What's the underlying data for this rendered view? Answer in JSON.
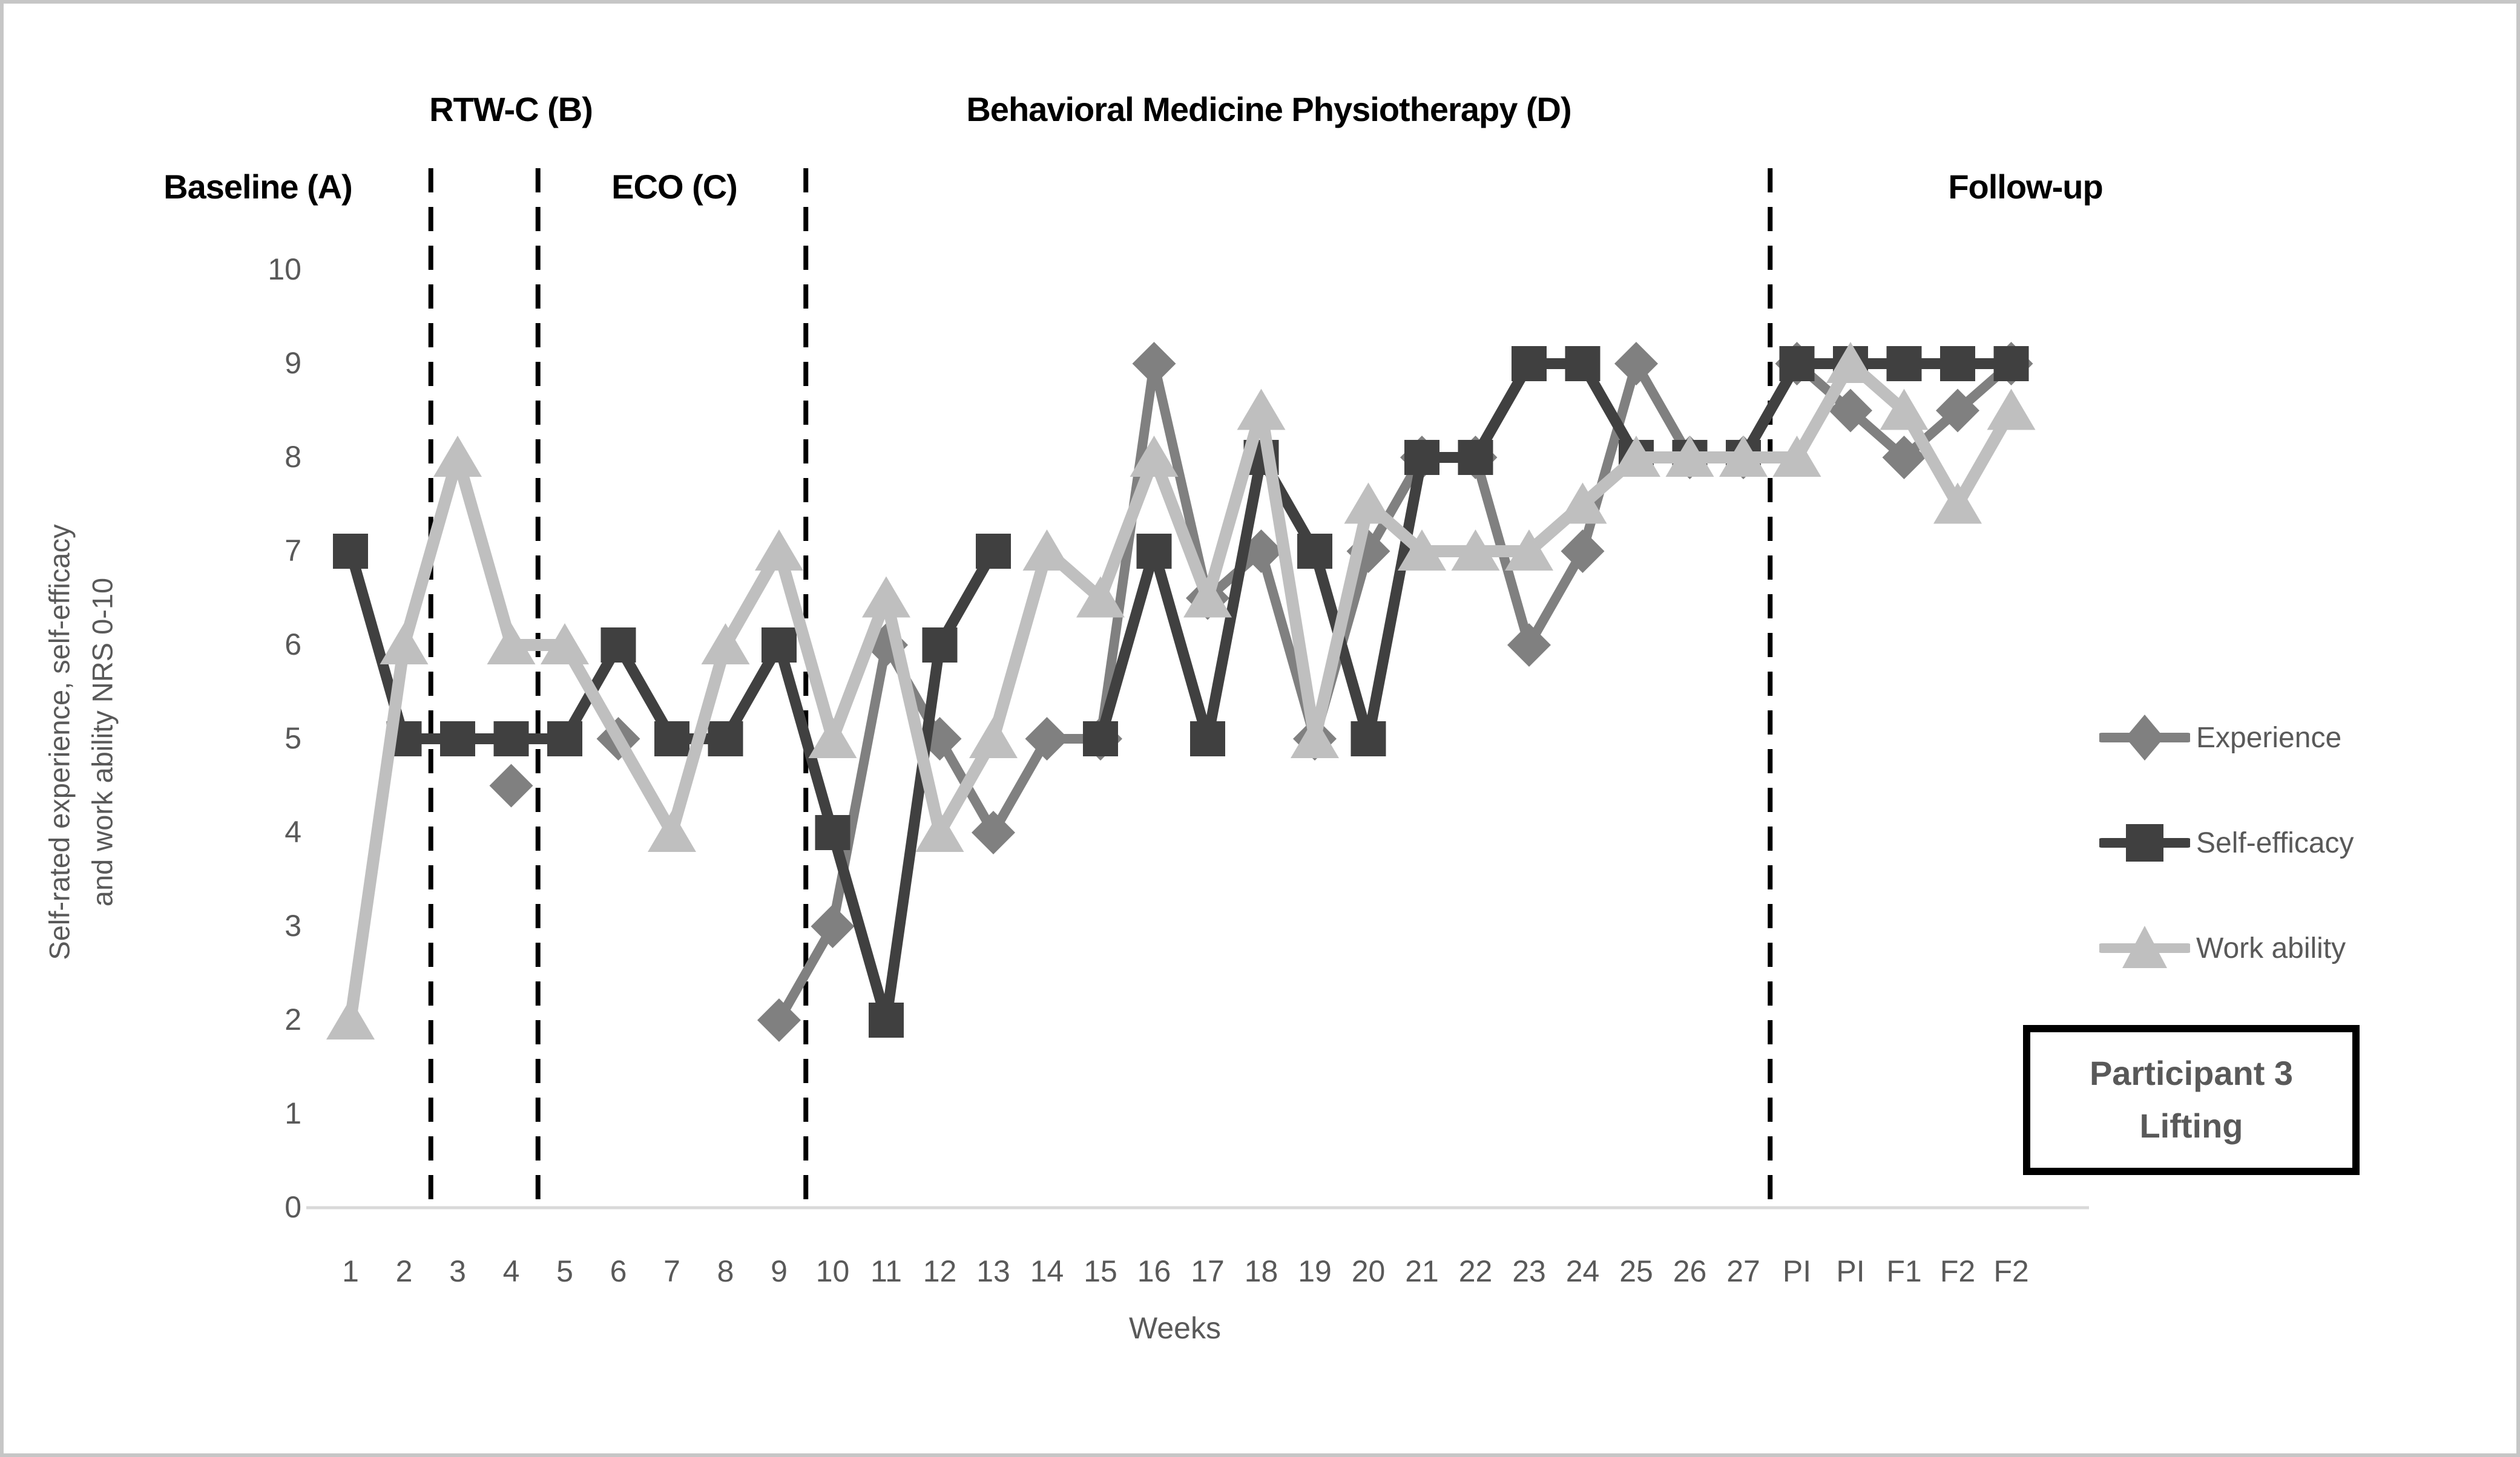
{
  "figure": {
    "phase_labels": {
      "baseline": "Baseline (A)",
      "rtwc": "RTW-C (B)",
      "eco": "ECO (C)",
      "bmp": "Behavioral Medicine Physiotherapy (D)",
      "followup": "Follow-up"
    },
    "y_axis_title_line1": "Self-rated experience, self-efficacy",
    "y_axis_title_line2": "and work ability NRS 0-10",
    "x_axis_title": "Weeks",
    "participant_box": {
      "line1": "Participant 3",
      "line2": "Lifting"
    }
  },
  "colors": {
    "experience": "#808080",
    "self_efficacy": "#404040",
    "work_ability": "#bfbfbf",
    "axis_text": "#595959",
    "axis_line": "#d9d9d9",
    "divider": "#000000",
    "phase_text": "#000000"
  },
  "chart_data": {
    "type": "line",
    "title": "",
    "xlabel": "Weeks",
    "ylabel": "Self-rated experience, self-efficacy and work ability NRS 0-10",
    "ylim": [
      0,
      10
    ],
    "yticks": [
      0,
      1,
      2,
      3,
      4,
      5,
      6,
      7,
      8,
      9,
      10
    ],
    "grid": false,
    "legend_position": "right",
    "categories": [
      "1",
      "2",
      "3",
      "4",
      "5",
      "6",
      "7",
      "8",
      "9",
      "10",
      "11",
      "12",
      "13",
      "14",
      "15",
      "16",
      "17",
      "18",
      "19",
      "20",
      "21",
      "22",
      "23",
      "24",
      "25",
      "26",
      "27",
      "PI",
      "PI",
      "F1",
      "F2",
      "F2"
    ],
    "phase_dividers": {
      "style": "dashed-vertical",
      "after_category_indices": [
        1,
        3,
        8,
        26
      ]
    },
    "series": [
      {
        "name": "Experience",
        "marker": "diamond",
        "color": "#808080",
        "gap_style": "break",
        "values": [
          null,
          null,
          null,
          4.5,
          null,
          5,
          null,
          null,
          2,
          3,
          6,
          5,
          4,
          5,
          5,
          9,
          6.5,
          7,
          5,
          7,
          8,
          8,
          6,
          7,
          9,
          8,
          8,
          9,
          8.5,
          8,
          8.5,
          9
        ]
      },
      {
        "name": "Self-efficacy",
        "marker": "square",
        "color": "#404040",
        "gap_style": "break",
        "values": [
          7,
          5,
          5,
          5,
          5,
          6,
          5,
          5,
          6,
          4,
          2,
          6,
          7,
          null,
          5,
          7,
          5,
          8,
          7,
          5,
          8,
          8,
          9,
          9,
          8,
          8,
          8,
          9,
          9,
          9,
          9,
          9
        ]
      },
      {
        "name": "Work ability",
        "marker": "triangle",
        "color": "#bfbfbf",
        "gap_style": "connect",
        "values": [
          2,
          6,
          8,
          6,
          6,
          null,
          4,
          6,
          7,
          5,
          6.5,
          4,
          5,
          7,
          6.5,
          8,
          6.5,
          8.5,
          5,
          7.5,
          7,
          7,
          7,
          7.5,
          8,
          8,
          8,
          8,
          9,
          8.5,
          7.5,
          8.5
        ]
      }
    ]
  }
}
